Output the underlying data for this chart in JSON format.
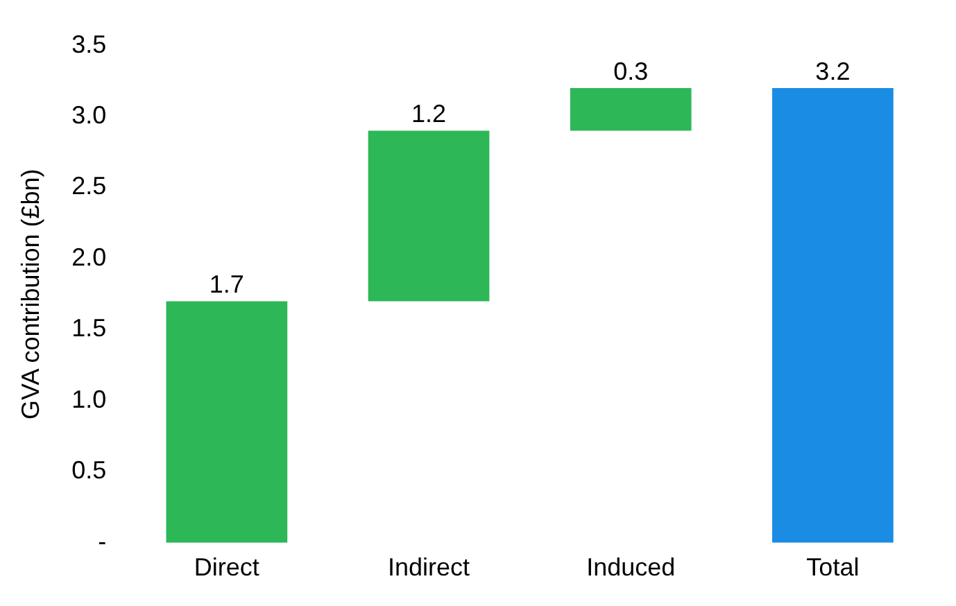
{
  "chart_data": {
    "type": "bar",
    "ylabel": "GVA contribution (£bn)",
    "categories": [
      "Direct",
      "Indirect",
      "Induced",
      "Total"
    ],
    "values": [
      1.7,
      1.2,
      0.3,
      3.2
    ],
    "base": [
      0,
      1.7,
      2.9,
      0
    ],
    "colors": [
      "#2db757",
      "#2db757",
      "#2db757",
      "#1b8ce3"
    ],
    "ylim": [
      0,
      3.5
    ],
    "yticks": [
      {
        "value": 0,
        "label": "-"
      },
      0.5,
      {
        "value": 1,
        "label": "1.0"
      },
      1.5,
      {
        "value": 2,
        "label": "2.0"
      },
      2.5,
      {
        "value": 3,
        "label": "3.0"
      },
      3.5
    ],
    "data_labels": true,
    "grid": false,
    "legend": false
  }
}
